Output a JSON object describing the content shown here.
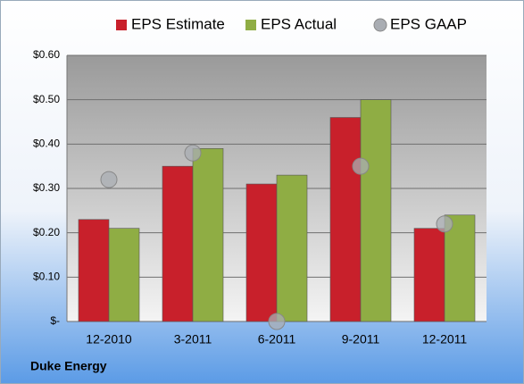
{
  "chart_data": {
    "type": "bar",
    "categories": [
      "12-2010",
      "3-2011",
      "6-2011",
      "9-2011",
      "12-2011"
    ],
    "series": [
      {
        "name": "EPS Estimate",
        "color": "#c8202b",
        "type": "bar",
        "values": [
          0.23,
          0.35,
          0.31,
          0.46,
          0.21
        ]
      },
      {
        "name": "EPS Actual",
        "color": "#8fad44",
        "type": "bar",
        "values": [
          0.21,
          0.39,
          0.33,
          0.5,
          0.24
        ]
      },
      {
        "name": "EPS GAAP",
        "color": "#a9adb3",
        "type": "scatter",
        "values": [
          0.32,
          0.38,
          0.0,
          0.35,
          0.22
        ]
      }
    ],
    "ylim": [
      0,
      0.6
    ],
    "yticks": [
      {
        "value": 0,
        "label": "$-"
      },
      {
        "value": 0.1,
        "label": "$0.10"
      },
      {
        "value": 0.2,
        "label": "$0.20"
      },
      {
        "value": 0.3,
        "label": "$0.30"
      },
      {
        "value": 0.4,
        "label": "$0.40"
      },
      {
        "value": 0.5,
        "label": "$0.50"
      },
      {
        "value": 0.6,
        "label": "$0.60"
      }
    ],
    "grid": true,
    "legend": "top",
    "annotation": "Duke Energy"
  }
}
